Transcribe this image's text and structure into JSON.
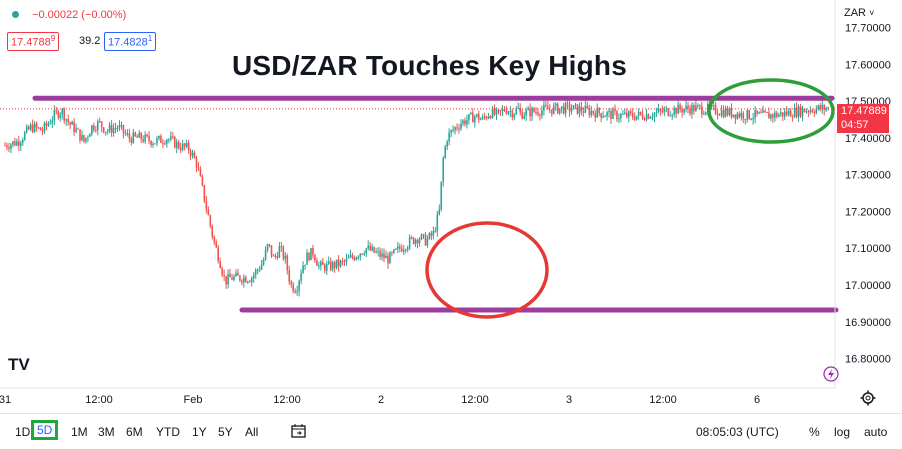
{
  "header": {
    "change": "−0.00022 (−0.00%)",
    "bid": "17.4788",
    "bid_sup": "9",
    "spread": "39.2",
    "ask": "17.4828",
    "ask_sup": "1",
    "symbol_currency": "ZAR",
    "dot_color": "#26a69a"
  },
  "chart_data": {
    "type": "candlestick",
    "title": "USD/ZAR Touches Key Highs",
    "y_ticks": [
      "17.70000",
      "17.60000",
      "17.50000",
      "17.40000",
      "17.30000",
      "17.20000",
      "17.10000",
      "17.00000",
      "16.90000",
      "16.80000"
    ],
    "x_ticks": [
      "31",
      "12:00",
      "Feb",
      "12:00",
      "2",
      "12:00",
      "3",
      "12:00",
      "6"
    ],
    "ylim": [
      16.72,
      17.775
    ],
    "current_price": "17.47889",
    "current_price_value": 17.47889,
    "countdown": "04:57",
    "key_levels": [
      {
        "label": "resistance",
        "value": 17.508,
        "color": "#9b3d9c"
      },
      {
        "label": "support",
        "value": 16.932,
        "color": "#9b3d9c"
      }
    ],
    "highlights": [
      {
        "color": "#e53935",
        "x_center": 1.37,
        "y_center": 17.06
      },
      {
        "color": "#2e9e3a",
        "x_center": 3.99,
        "y_center": 17.466
      }
    ],
    "series_points": [
      [
        0.0,
        17.38
      ],
      [
        0.07,
        17.39
      ],
      [
        0.14,
        17.43
      ],
      [
        0.2,
        17.42
      ],
      [
        0.26,
        17.46
      ],
      [
        0.3,
        17.475
      ],
      [
        0.34,
        17.44
      ],
      [
        0.38,
        17.42
      ],
      [
        0.42,
        17.39
      ],
      [
        0.46,
        17.43
      ],
      [
        0.5,
        17.44
      ],
      [
        0.54,
        17.42
      ],
      [
        0.6,
        17.43
      ],
      [
        0.66,
        17.4
      ],
      [
        0.72,
        17.4
      ],
      [
        0.8,
        17.39
      ],
      [
        0.86,
        17.4
      ],
      [
        0.92,
        17.38
      ],
      [
        0.98,
        17.37
      ],
      [
        1.02,
        17.33
      ],
      [
        1.05,
        17.26
      ],
      [
        1.08,
        17.19
      ],
      [
        1.11,
        17.12
      ],
      [
        1.14,
        17.07
      ],
      [
        1.17,
        17.01
      ],
      [
        1.2,
        17.02
      ],
      [
        1.26,
        17.02
      ],
      [
        1.31,
        17.02
      ],
      [
        1.34,
        17.04
      ],
      [
        1.37,
        17.06
      ],
      [
        1.4,
        17.11
      ],
      [
        1.43,
        17.07
      ],
      [
        1.46,
        17.1
      ],
      [
        1.49,
        17.07
      ],
      [
        1.52,
        17.0
      ],
      [
        1.55,
        16.99
      ],
      [
        1.58,
        17.05
      ],
      [
        1.61,
        17.08
      ],
      [
        1.64,
        17.09
      ],
      [
        1.67,
        17.05
      ],
      [
        1.72,
        17.05
      ],
      [
        1.8,
        17.06
      ],
      [
        1.86,
        17.08
      ],
      [
        1.92,
        17.1
      ],
      [
        1.96,
        17.09
      ],
      [
        2.0,
        17.08
      ],
      [
        2.04,
        17.07
      ],
      [
        2.1,
        17.1
      ],
      [
        2.16,
        17.12
      ],
      [
        2.2,
        17.13
      ],
      [
        2.24,
        17.12
      ],
      [
        2.28,
        17.14
      ],
      [
        2.31,
        17.2
      ],
      [
        2.33,
        17.34
      ],
      [
        2.35,
        17.4
      ],
      [
        2.38,
        17.42
      ],
      [
        2.42,
        17.44
      ],
      [
        2.46,
        17.45
      ],
      [
        2.5,
        17.46
      ],
      [
        2.54,
        17.45
      ],
      [
        2.58,
        17.47
      ],
      [
        2.62,
        17.46
      ],
      [
        2.66,
        17.48
      ],
      [
        2.7,
        17.47
      ],
      [
        2.74,
        17.48
      ]
    ]
  },
  "toolbar": {
    "timeframes": [
      "1D",
      "5D",
      "1M",
      "3M",
      "6M",
      "YTD",
      "1Y",
      "5Y",
      "All"
    ],
    "selected": "5D",
    "time": "08:05:03 (UTC)",
    "percent": "%",
    "log": "log",
    "auto": "auto",
    "calendar_icon": "calendar-range-icon",
    "settings_icon": "gear-icon"
  },
  "colors": {
    "up": "#26a69a",
    "down": "#ef5350",
    "level": "#9b3d9c",
    "price_tag": "#f23645"
  }
}
